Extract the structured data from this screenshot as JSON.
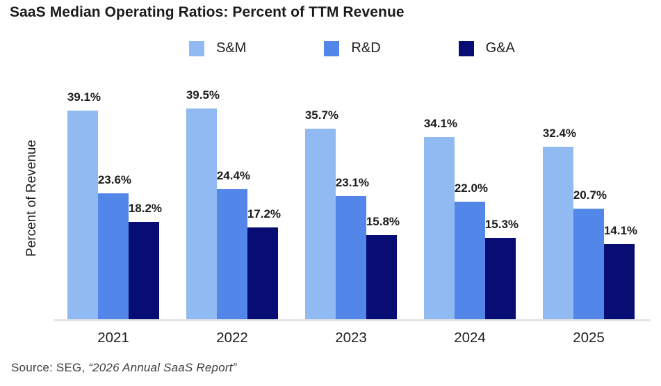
{
  "title": "SaaS Median Operating Ratios: Percent of TTM Revenue",
  "ylabel": "Percent of Revenue",
  "legend": [
    {
      "label": "S&M",
      "color": "#92baf2"
    },
    {
      "label": "R&D",
      "color": "#5286e8"
    },
    {
      "label": "G&A",
      "color": "#070d72"
    }
  ],
  "source": {
    "prefix": "Source: SEG, ",
    "citation": "“2026 Annual SaaS Report”"
  },
  "chart_data": {
    "type": "bar",
    "categories": [
      "2021",
      "2022",
      "2023",
      "2024",
      "2025"
    ],
    "series": [
      {
        "name": "S&M",
        "color": "#92baf2",
        "values": [
          39.1,
          39.5,
          35.7,
          34.1,
          32.4
        ]
      },
      {
        "name": "R&D",
        "color": "#5286e8",
        "values": [
          23.6,
          24.4,
          23.1,
          22.0,
          20.7
        ]
      },
      {
        "name": "G&A",
        "color": "#070d72",
        "values": [
          18.2,
          17.2,
          15.8,
          15.3,
          14.1
        ]
      }
    ],
    "value_labels": [
      [
        "39.1%",
        "39.5%",
        "35.7%",
        "34.1%",
        "32.4%"
      ],
      [
        "23.6%",
        "24.4%",
        "23.1%",
        "22.0%",
        "20.7%"
      ],
      [
        "18.2%",
        "17.2%",
        "15.8%",
        "15.3%",
        "14.1%"
      ]
    ],
    "title": "SaaS Median Operating Ratios: Percent of TTM Revenue",
    "xlabel": "",
    "ylabel": "Percent of Revenue",
    "ylim": [
      0,
      47.2
    ],
    "grid": false,
    "legend_position": "top",
    "axis_line_color": "#e3e3e3"
  }
}
